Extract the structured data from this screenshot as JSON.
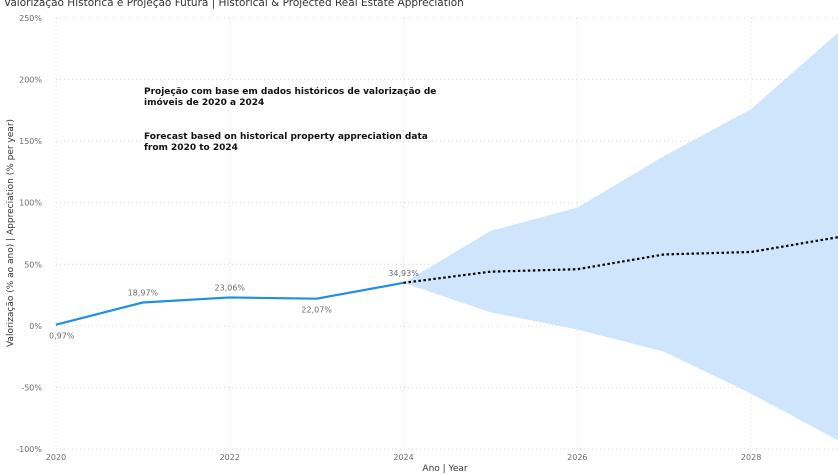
{
  "chart_data": {
    "type": "line",
    "title": "Valorização Histórica e Projeção Futura | Historical & Projected Real Estate Appreciation",
    "xlabel": "Ano | Year",
    "ylabel": "Valorização (% ao ano) | Appreciation (% per year)",
    "xlim": [
      2020,
      2029
    ],
    "ylim": [
      -100,
      250
    ],
    "x_ticks": [
      2020,
      2022,
      2024,
      2026,
      2028
    ],
    "x_tick_labels": [
      "2020",
      "2022",
      "2024",
      "2026",
      "2028"
    ],
    "y_ticks": [
      -100,
      -50,
      0,
      50,
      100,
      150,
      200,
      250
    ],
    "y_tick_labels": [
      "-100%",
      "-50%",
      "0%",
      "50%",
      "100%",
      "150%",
      "200%",
      "250%"
    ],
    "grid": true,
    "series": [
      {
        "kind": "historical",
        "color": "#1e8ee6",
        "points": [
          {
            "x": 2020,
            "y": 0.97,
            "label": "0,97%"
          },
          {
            "x": 2021,
            "y": 18.97,
            "label": "18,97%"
          },
          {
            "x": 2022,
            "y": 23.06,
            "label": "23,06%"
          },
          {
            "x": 2023,
            "y": 22.07,
            "label": "22,07%"
          },
          {
            "x": 2024,
            "y": 34.93,
            "label": "34,93%"
          }
        ]
      },
      {
        "kind": "forecast",
        "color": "#000000",
        "points": [
          {
            "x": 2024,
            "y": 34.93
          },
          {
            "x": 2025,
            "y": 44
          },
          {
            "x": 2026,
            "y": 46
          },
          {
            "x": 2027,
            "y": 58
          },
          {
            "x": 2028,
            "y": 60
          },
          {
            "x": 2029,
            "y": 72
          }
        ]
      }
    ],
    "confidence_band": {
      "color": "#cfe5fb",
      "upper": [
        {
          "x": 2024,
          "y": 34.93
        },
        {
          "x": 2025,
          "y": 77
        },
        {
          "x": 2026,
          "y": 96
        },
        {
          "x": 2027,
          "y": 138
        },
        {
          "x": 2028,
          "y": 176
        },
        {
          "x": 2029,
          "y": 238
        }
      ],
      "lower": [
        {
          "x": 2024,
          "y": 34.93
        },
        {
          "x": 2025,
          "y": 11
        },
        {
          "x": 2026,
          "y": -3
        },
        {
          "x": 2027,
          "y": -21
        },
        {
          "x": 2028,
          "y": -55
        },
        {
          "x": 2029,
          "y": -93
        }
      ]
    },
    "annotations": [
      {
        "lines": [
          "Projeção com base em dados históricos de valorização de",
          "imóveis de 2020 a 2024"
        ]
      },
      {
        "lines": [
          "Forecast based on historical property appreciation data",
          "from 2020 to 2024"
        ]
      }
    ]
  }
}
